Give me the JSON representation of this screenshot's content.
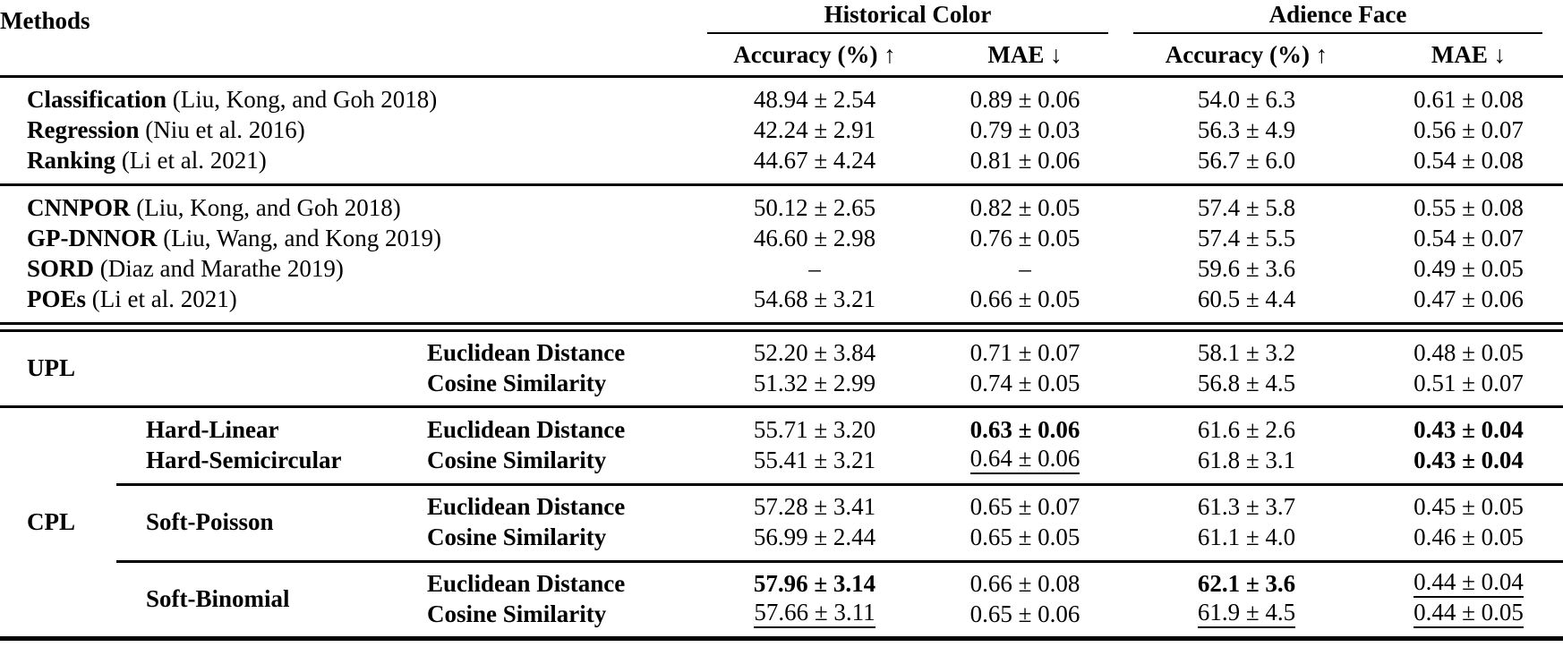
{
  "header": {
    "methods": "Methods",
    "dataset1": "Historical Color",
    "dataset2": "Adience Face",
    "acc_label": "Accuracy (%) ↑",
    "mae_label": "MAE ↓"
  },
  "labels": {
    "upl": "UPL",
    "cpl": "CPL",
    "hard_linear": "Hard-Linear",
    "hard_semicircular": "Hard-Semicircular",
    "soft_poisson": "Soft-Poisson",
    "soft_binomial": "Soft-Binomial",
    "euclidean": "Euclidean Distance",
    "cosine": "Cosine Similarity"
  },
  "baselines_a": [
    {
      "name": "Classification",
      "cite": "(Liu, Kong, and Goh 2018)",
      "hc_acc": "48.94 ± 2.54",
      "hc_mae": "0.89 ± 0.06",
      "af_acc": "54.0 ± 6.3",
      "af_mae": "0.61 ± 0.08"
    },
    {
      "name": "Regression",
      "cite": "(Niu et al. 2016)",
      "hc_acc": "42.24 ± 2.91",
      "hc_mae": "0.79 ± 0.03",
      "af_acc": "56.3 ± 4.9",
      "af_mae": "0.56 ± 0.07"
    },
    {
      "name": "Ranking",
      "cite": "(Li et al. 2021)",
      "hc_acc": "44.67 ± 4.24",
      "hc_mae": "0.81 ± 0.06",
      "af_acc": "56.7 ± 6.0",
      "af_mae": "0.54 ± 0.08"
    }
  ],
  "baselines_b": [
    {
      "name": "CNNPOR",
      "cite": "(Liu, Kong, and Goh 2018)",
      "hc_acc": "50.12 ± 2.65",
      "hc_mae": "0.82 ± 0.05",
      "af_acc": "57.4 ± 5.8",
      "af_mae": "0.55 ± 0.08"
    },
    {
      "name": "GP-DNNOR",
      "cite": "(Liu, Wang, and Kong 2019)",
      "hc_acc": "46.60 ± 2.98",
      "hc_mae": "0.76 ± 0.05",
      "af_acc": "57.4 ± 5.5",
      "af_mae": "0.54 ± 0.07"
    },
    {
      "name": "SORD",
      "cite": "(Diaz and Marathe 2019)",
      "hc_acc": "–",
      "hc_mae": "–",
      "af_acc": "59.6 ± 3.6",
      "af_mae": "0.49 ± 0.05"
    },
    {
      "name": "POEs",
      "cite": "(Li et al. 2021)",
      "hc_acc": "54.68 ± 3.21",
      "hc_mae": "0.66 ± 0.05",
      "af_acc": "60.5 ± 4.4",
      "af_mae": "0.47 ± 0.06"
    }
  ],
  "upl": [
    {
      "hc_acc": "52.20 ± 3.84",
      "hc_mae": "0.71 ± 0.07",
      "af_acc": "58.1 ± 3.2",
      "af_mae": "0.48 ± 0.05"
    },
    {
      "hc_acc": "51.32 ± 2.99",
      "hc_mae": "0.74 ± 0.05",
      "af_acc": "56.8 ± 4.5",
      "af_mae": "0.51 ± 0.07"
    }
  ],
  "cpl": {
    "hard": [
      {
        "hc_acc": "55.71 ± 3.20",
        "hc_mae": "0.63 ± 0.06",
        "af_acc": "61.6 ± 2.6",
        "af_mae": "0.43 ± 0.04"
      },
      {
        "hc_acc": "55.41 ± 3.21",
        "hc_mae": "0.64 ± 0.06",
        "af_acc": "61.8 ± 3.1",
        "af_mae": "0.43 ± 0.04"
      }
    ],
    "soft_poisson": [
      {
        "hc_acc": "57.28 ± 3.41",
        "hc_mae": "0.65 ± 0.07",
        "af_acc": "61.3 ± 3.7",
        "af_mae": "0.45 ± 0.05"
      },
      {
        "hc_acc": "56.99 ± 2.44",
        "hc_mae": "0.65 ± 0.05",
        "af_acc": "61.1 ± 4.0",
        "af_mae": "0.46 ± 0.05"
      }
    ],
    "soft_binomial": [
      {
        "hc_acc": "57.96 ± 3.14",
        "hc_mae": "0.66 ± 0.08",
        "af_acc": "62.1 ± 3.6",
        "af_mae": "0.44 ± 0.04"
      },
      {
        "hc_acc": "57.66 ± 3.11",
        "hc_mae": "0.65 ± 0.06",
        "af_acc": "61.9 ± 4.5",
        "af_mae": "0.44 ± 0.05"
      }
    ]
  }
}
